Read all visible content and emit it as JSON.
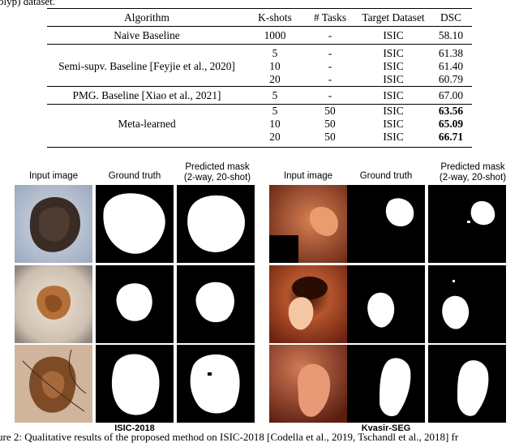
{
  "top_fragment": "olyp) dataset.",
  "table": {
    "headers": [
      "Algorithm",
      "K-shots",
      "# Tasks",
      "Target Dataset",
      "DSC"
    ],
    "groups": [
      {
        "name": "Naive Baseline",
        "rows": [
          {
            "k": "1000",
            "tasks": "-",
            "target": "ISIC",
            "dsc": "58.10",
            "bold": false
          }
        ]
      },
      {
        "name": "Semi-supv. Baseline [Feyjie et al., 2020]",
        "rows": [
          {
            "k": "5",
            "tasks": "-",
            "target": "ISIC",
            "dsc": "61.38",
            "bold": false
          },
          {
            "k": "10",
            "tasks": "-",
            "target": "ISIC",
            "dsc": "61.40",
            "bold": false
          },
          {
            "k": "20",
            "tasks": "-",
            "target": "ISIC",
            "dsc": "60.79",
            "bold": false
          }
        ]
      },
      {
        "name": "PMG. Baseline [Xiao et al., 2021]",
        "rows": [
          {
            "k": "5",
            "tasks": "-",
            "target": "ISIC",
            "dsc": "67.00",
            "bold": false
          }
        ]
      },
      {
        "name": "Meta-learned",
        "rows": [
          {
            "k": "5",
            "tasks": "50",
            "target": "ISIC",
            "dsc": "63.56",
            "bold": true
          },
          {
            "k": "10",
            "tasks": "50",
            "target": "ISIC",
            "dsc": "65.09",
            "bold": true
          },
          {
            "k": "20",
            "tasks": "50",
            "target": "ISIC",
            "dsc": "66.71",
            "bold": true
          }
        ]
      }
    ]
  },
  "figure": {
    "left": {
      "col_input": "Input image",
      "col_gt": "Ground truth",
      "col_pred_1": "Predicted mask",
      "col_pred_2": "(2-way, 20-shot)",
      "dataset": "ISIC-2018"
    },
    "right": {
      "col_input": "Input image",
      "col_gt": "Ground truth",
      "col_pred_1": "Predicted mask",
      "col_pred_2": "(2-way, 20-shot)",
      "dataset": "Kvasir-SEG"
    }
  },
  "caption": "ure 2: Qualitative results of the proposed method on ISIC-2018 [Codella et al., 2019, Tschandl et al., 2018] fr"
}
